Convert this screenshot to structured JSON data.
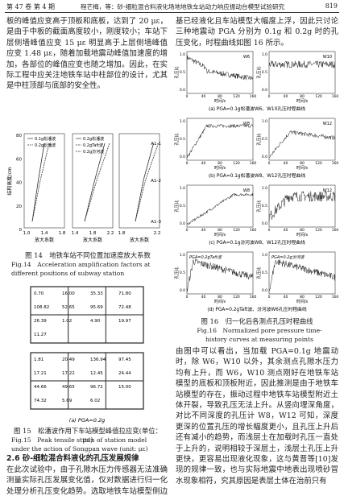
{
  "header": {
    "volume": "第 47 卷 第 4 期",
    "running_title": "程芒梅，等：砂-细粒混合料液化场地地铁车站动力响应振动台模型试验研究",
    "page": "819"
  },
  "left_column": {
    "paragraph_1": "板的峰值应变高于顶板和底板，达到了 20 με，是由于中板的截面高度较小，刚度较小；车站下层侧墙峰值应变 15 με 明显高于上层侧墙峰值应变 1.48 με，随着加载地震动峰值加速度的增加，各部位的峰值应变也随之增加。因此，在实际工程中应关注地铁车站中柱部位的设计，尤其是中柱顶部与底部的安全性。",
    "section_heading": "2.6 砂-细粒混合料液化的孔压发展规律",
    "paragraph_2": "在此次试验中，由于孔隙水压力传感器无法准确测量实际孔压发展变化值，仅对数据进行归一化处理分析孔压变化趋势。选取地铁车站模型侧边孔压计 W6，W8 和 W10 以及模型箱底部孔压计 W12 进行分析，探究在不同地震动作用下模型体系的孔压发展规律。由于输入地震动 PGA 达到 0.3g 时模型地"
  },
  "figure_14": {
    "y_label": "结构高度/cm",
    "x_label": "放大系数",
    "yticks": [
      "80",
      "60",
      "40",
      "20",
      "0"
    ],
    "panels": [
      {
        "legend": [
          "0.1g松潘波",
          "0.2g松潘波"
        ],
        "xticks": [
          "1.0",
          "1.4",
          "1.8"
        ]
      },
      {
        "legend": [
          "0.2g松潘波",
          "0.2gTaft波",
          "0.2g汾河波"
        ],
        "xticks": [
          "1.4",
          "1.8",
          "2.2"
        ]
      },
      {
        "legend": [],
        "xticks": [
          "1.8",
          "2.2"
        ]
      }
    ],
    "points": [
      "A1-1",
      "A1-2",
      "A1-3"
    ],
    "caption_cn": "图 14　地铁车站不同位置加速度放大系数",
    "caption_en": "Fig.14　Acceleration amplification factors at different positions of subway station"
  },
  "figure_15": {
    "grids": [
      [
        "0.70",
        "16.00",
        "35.33",
        "71.80",
        "108.82",
        "52.65",
        "95.69",
        "72.48",
        "26.39",
        "1.02",
        "4.90",
        "19.97",
        "11.27"
      ],
      [
        "1.81",
        "20.49",
        "136.94",
        "97.45",
        "17.21",
        "17.22",
        "12.45",
        "24.44",
        "44.66",
        "49.65",
        "96.72",
        "15.00",
        "74.32",
        "5.69",
        "6.02"
      ]
    ],
    "panel_label": "(a) PGA=0.2g",
    "caption_cn": "图 15　松潘波作用下车站模型峰值拉应变(单位：με)",
    "caption_en": "Fig.15　Peak tensile strain of station model under the action of Songpan wave (unit: με)"
  },
  "right_column": {
    "paragraph_1": "基已经液化且车站模型大幅度上浮，因此只讨论三种地震动 PGA 分别为 0.1g 和 0.2g 时的孔压变化，时程曲线如图 16 所示。",
    "paragraph_2": "由图中可以看出，当加载 PGA=0.1g 地震动时，除 W6，W10 以外，其余测点孔隙水压力均有上升，而 W6，W10 测点刚好在地铁车站模型的底板和顶板附近，因此推测是由于地铁车站模型的存在，振动过程中地铁车站模型附近土体开裂，导致孔压无法上升。从竖向埋深角度，对比不同深度的孔压计 W8，W12 可知，深度更深的位置孔压的增长幅度更小，且孔压上升后还有减小的趋势，而浅层土在加载时孔压一直处于上升的，说明相较于深层土，浅层土孔压上升更快，更容易出现液化现象，这与黄晋等[10]发现的规律一致，也与实际地震中地表出现喷砂冒水现象相符，究其原因是表层土体在治前只有"
  },
  "figure_16": {
    "y_label": "孔压比",
    "x_label": "时间/s",
    "yticks": [
      "1.0",
      "0.5",
      "0.0"
    ],
    "xticks": [
      "0",
      "40",
      "80",
      "120",
      "160"
    ],
    "rows": [
      {
        "labels": [
          "W6",
          "W10"
        ],
        "caption": "(a) PGA=0.1g松潘波W6、W10孔压时程曲线"
      },
      {
        "labels": [
          "W8",
          "W12"
        ],
        "caption": "(b) PGA=0.1g松潘波W8、W12孔压时程曲线"
      },
      {
        "labels": [
          "W8",
          "W12"
        ],
        "caption": "(c) PGA=0.1g汾河波W8、W12孔压时程曲线"
      },
      {
        "labels": [
          "PGA=0.2gTaft波",
          "PGA=0.2g汾河波"
        ],
        "caption": "(d) PGA=0.2gTaft波、汾河波W6孔压时程曲线"
      }
    ],
    "caption_cn": "图 16　归一化后各测点孔压时程曲线",
    "caption_en": "Fig.16　Normalized pore pressure time-history curves at measuring points"
  }
}
